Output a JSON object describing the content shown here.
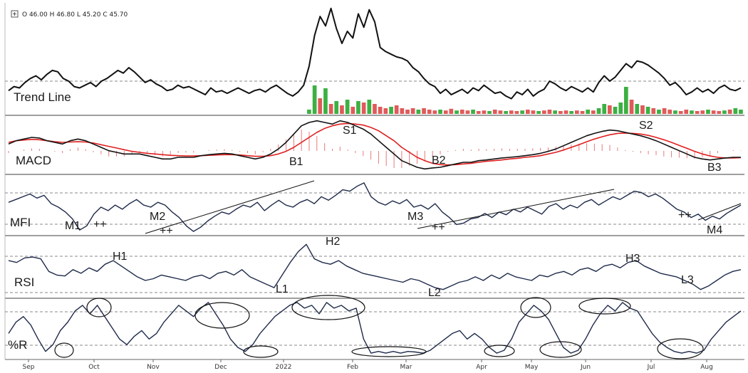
{
  "chart_data": {
    "type": "line",
    "ohlc": {
      "text": "O 46.00  H 46.80  L 45.20  C 45.70"
    },
    "x_ticks": [
      "Sep",
      "Oct",
      "Nov",
      "Dec",
      "2022",
      "Feb",
      "Mar",
      "Apr",
      "May",
      "Jun",
      "Jul",
      "Aug"
    ],
    "panels": [
      {
        "id": "price",
        "label": "Trend Line"
      },
      {
        "id": "macd",
        "label": "MACD"
      },
      {
        "id": "mfi",
        "label": "MFI"
      },
      {
        "id": "rsi",
        "label": "RSI"
      },
      {
        "id": "wr",
        "label": "%R"
      }
    ],
    "colors": {
      "line": "#111111",
      "signal": "#e02020",
      "vol_up": "#3cb043",
      "vol_down": "#e05a5a",
      "hist": "#e87a7a",
      "grid": "#888888"
    },
    "series": {
      "price": [
        45.7,
        46,
        45.9,
        46.3,
        46.6,
        46.8,
        46.5,
        46.9,
        47.2,
        47.1,
        46.6,
        46.4,
        46.0,
        45.9,
        46.1,
        46.3,
        46.0,
        46.4,
        46.6,
        46.9,
        47.2,
        47.0,
        47.4,
        47.1,
        46.7,
        46.3,
        46.5,
        46.2,
        46.0,
        45.7,
        45.8,
        46.1,
        45.9,
        46.0,
        45.8,
        45.6,
        45.4,
        45.9,
        45.6,
        45.7,
        45.5,
        45.7,
        45.9,
        45.7,
        45.5,
        45.7,
        45.8,
        45.6,
        45.9,
        46.1,
        45.8,
        45.5,
        45.3,
        45.6,
        46.1,
        47.5,
        49.8,
        51.2,
        50.5,
        51.8,
        50.3,
        49.2,
        50.1,
        49.6,
        51.4,
        50.4,
        51.7,
        50.8,
        48.9,
        48.6,
        48.4,
        48.2,
        48.1,
        47.9,
        47.4,
        47.1,
        46.6,
        46.2,
        46.0,
        45.5,
        45.8,
        45.4,
        45.6,
        45.8,
        45.5,
        45.9,
        45.7,
        46.1,
        45.8,
        45.5,
        45.6,
        45.3,
        45.1,
        45.6,
        45.4,
        45.8,
        45.3,
        45.6,
        45.8,
        46.4,
        46.2,
        45.9,
        45.7,
        46.0,
        45.8,
        45.6,
        45.9,
        45.6,
        46.3,
        46.8,
        46.4,
        46.7,
        47.2,
        47.7,
        47.4,
        47.9,
        47.8,
        47.6,
        47.3,
        47.0,
        46.6,
        46.1,
        46.3,
        45.9,
        45.4,
        45.6,
        45.9,
        45.6,
        45.8,
        45.5,
        45.9,
        46.1,
        45.8,
        45.7,
        45.9
      ],
      "volume": [
        0,
        0,
        0,
        0,
        0,
        0,
        0,
        0,
        0,
        0,
        0,
        0,
        0,
        0,
        0,
        0,
        0,
        0,
        0,
        0,
        0,
        0,
        0,
        0,
        0,
        0,
        0,
        0,
        0,
        0,
        0,
        0,
        0,
        0,
        0,
        0,
        0,
        0,
        0,
        0,
        0,
        0,
        0,
        0,
        0,
        0,
        0,
        0,
        0,
        0,
        0,
        0,
        0,
        0,
        0,
        0.15,
        1.0,
        0.55,
        0.9,
        0.35,
        0.45,
        0.3,
        0.5,
        0.25,
        0.45,
        0.4,
        0.5,
        0.35,
        0.25,
        0.2,
        0.25,
        0.3,
        0.2,
        0.15,
        0.2,
        0.15,
        0.2,
        0.15,
        0.12,
        0.15,
        0.12,
        0.18,
        0.12,
        0.15,
        0.12,
        0.15,
        0.1,
        0.12,
        0.1,
        0.15,
        0.12,
        0.1,
        0.12,
        0.1,
        0.12,
        0.15,
        0.12,
        0.1,
        0.12,
        0.15,
        0.12,
        0.1,
        0.12,
        0.1,
        0.12,
        0.1,
        0.15,
        0.12,
        0.2,
        0.35,
        0.3,
        0.25,
        0.4,
        0.95,
        0.5,
        0.35,
        0.3,
        0.25,
        0.2,
        0.15,
        0.2,
        0.15,
        0.12,
        0.1,
        0.15,
        0.12,
        0.1,
        0.12,
        0.15,
        0.12,
        0.1,
        0.12,
        0.15,
        0.2,
        0.15
      ],
      "volume_up": [
        false,
        false,
        false,
        false,
        false,
        false,
        false,
        false,
        false,
        false,
        false,
        false,
        false,
        false,
        false,
        false,
        false,
        false,
        false,
        false,
        false,
        false,
        false,
        false,
        false,
        false,
        false,
        false,
        false,
        false,
        false,
        false,
        false,
        false,
        false,
        false,
        false,
        false,
        false,
        false,
        false,
        false,
        false,
        false,
        false,
        false,
        false,
        false,
        false,
        false,
        false,
        false,
        false,
        false,
        false,
        true,
        true,
        false,
        true,
        false,
        true,
        false,
        true,
        false,
        true,
        false,
        true,
        false,
        false,
        false,
        true,
        false,
        false,
        false,
        false,
        true,
        false,
        false,
        false,
        true,
        false,
        false,
        true,
        false,
        false,
        true,
        false,
        false,
        true,
        false,
        false,
        true,
        false,
        false,
        true,
        false,
        false,
        true,
        false,
        false,
        true,
        false,
        false,
        true,
        false,
        false,
        true,
        false,
        true,
        true,
        false,
        true,
        true,
        true,
        false,
        true,
        false,
        true,
        false,
        true,
        false,
        false,
        true,
        false,
        false,
        true,
        false,
        false,
        true,
        false,
        false,
        true,
        false,
        true,
        true
      ],
      "macd": [
        0.4,
        0.5,
        0.55,
        0.6,
        0.58,
        0.5,
        0.45,
        0.4,
        0.5,
        0.55,
        0.5,
        0.4,
        0.3,
        0.2,
        0.15,
        0.1,
        0.1,
        0.1,
        0.05,
        0.0,
        -0.05,
        -0.05,
        0.0,
        0.0,
        0.0,
        0.05,
        0.08,
        0.1,
        0.12,
        0.1,
        0.05,
        0.0,
        -0.05,
        0.0,
        0.1,
        0.25,
        0.45,
        0.7,
        0.95,
        1.05,
        1.1,
        1.05,
        1.0,
        1.1,
        1.05,
        0.95,
        0.85,
        0.7,
        0.5,
        0.3,
        0.1,
        -0.1,
        -0.2,
        -0.3,
        -0.35,
        -0.32,
        -0.3,
        -0.25,
        -0.2,
        -0.15,
        -0.15,
        -0.1,
        -0.08,
        -0.05,
        -0.02,
        0.0,
        0.02,
        0.05,
        0.08,
        0.12,
        0.18,
        0.25,
        0.35,
        0.45,
        0.55,
        0.65,
        0.72,
        0.78,
        0.82,
        0.8,
        0.75,
        0.7,
        0.65,
        0.58,
        0.5,
        0.4,
        0.3,
        0.2,
        0.1,
        0.0,
        -0.05,
        -0.08,
        -0.05,
        -0.02,
        0.0,
        0.0
      ],
      "signal": [
        0.45,
        0.5,
        0.52,
        0.54,
        0.53,
        0.5,
        0.47,
        0.45,
        0.46,
        0.47,
        0.46,
        0.43,
        0.38,
        0.33,
        0.28,
        0.23,
        0.18,
        0.15,
        0.12,
        0.1,
        0.08,
        0.06,
        0.05,
        0.04,
        0.04,
        0.05,
        0.06,
        0.07,
        0.08,
        0.08,
        0.07,
        0.05,
        0.03,
        0.03,
        0.05,
        0.1,
        0.18,
        0.3,
        0.45,
        0.6,
        0.75,
        0.87,
        0.95,
        1.0,
        1.02,
        1.0,
        0.97,
        0.9,
        0.8,
        0.65,
        0.5,
        0.3,
        0.15,
        0.0,
        -0.1,
        -0.18,
        -0.22,
        -0.23,
        -0.22,
        -0.2,
        -0.18,
        -0.15,
        -0.12,
        -0.1,
        -0.08,
        -0.05,
        -0.03,
        0.0,
        0.02,
        0.05,
        0.1,
        0.15,
        0.22,
        0.3,
        0.38,
        0.47,
        0.55,
        0.62,
        0.68,
        0.72,
        0.73,
        0.72,
        0.7,
        0.66,
        0.6,
        0.53,
        0.45,
        0.36,
        0.27,
        0.18,
        0.1,
        0.04,
        0.0,
        -0.02,
        -0.02,
        -0.01
      ],
      "mfi": [
        62,
        66,
        70,
        74,
        68,
        72,
        60,
        55,
        48,
        38,
        22,
        28,
        45,
        55,
        50,
        58,
        52,
        60,
        66,
        58,
        55,
        62,
        58,
        48,
        40,
        28,
        20,
        26,
        35,
        42,
        48,
        45,
        52,
        58,
        55,
        62,
        50,
        58,
        65,
        58,
        55,
        62,
        66,
        60,
        70,
        65,
        72,
        80,
        78,
        85,
        90,
        70,
        62,
        58,
        64,
        60,
        66,
        55,
        58,
        52,
        60,
        48,
        40,
        30,
        32,
        38,
        40,
        46,
        40,
        48,
        44,
        52,
        48,
        55,
        50,
        45,
        56,
        60,
        52,
        58,
        54,
        62,
        66,
        58,
        64,
        70,
        66,
        72,
        78,
        76,
        70,
        74,
        68,
        60,
        52,
        48,
        40,
        45,
        36,
        42,
        38,
        46,
        52,
        58
      ],
      "rsi": [
        62,
        60,
        65,
        66,
        64,
        50,
        46,
        45,
        52,
        48,
        54,
        50,
        58,
        62,
        56,
        50,
        44,
        40,
        42,
        46,
        44,
        42,
        40,
        44,
        46,
        42,
        48,
        50,
        46,
        52,
        44,
        40,
        36,
        32,
        46,
        60,
        72,
        80,
        64,
        60,
        58,
        62,
        56,
        52,
        48,
        46,
        44,
        42,
        40,
        38,
        42,
        40,
        36,
        32,
        30,
        34,
        38,
        40,
        44,
        40,
        46,
        42,
        48,
        44,
        42,
        40,
        46,
        44,
        48,
        50,
        46,
        52,
        54,
        50,
        56,
        58,
        54,
        60,
        62,
        56,
        52,
        48,
        46,
        44,
        40,
        36,
        30,
        34,
        40,
        46,
        50,
        52
      ],
      "wr": [
        -60,
        -40,
        -30,
        -45,
        -70,
        -92,
        -80,
        -55,
        -40,
        -20,
        -10,
        -25,
        -10,
        -30,
        -50,
        -70,
        -80,
        -65,
        -55,
        -70,
        -60,
        -40,
        -25,
        -10,
        -20,
        -30,
        -15,
        -5,
        -25,
        -45,
        -70,
        -85,
        -92,
        -80,
        -60,
        -45,
        -30,
        -20,
        -10,
        -5,
        -15,
        -10,
        -25,
        -5,
        -15,
        -10,
        -20,
        -15,
        -70,
        -95,
        -92,
        -95,
        -92,
        -95,
        -92,
        -93,
        -95,
        -90,
        -80,
        -70,
        -60,
        -55,
        -70,
        -60,
        -70,
        -85,
        -95,
        -90,
        -70,
        -40,
        -25,
        -10,
        -20,
        -35,
        -60,
        -85,
        -95,
        -90,
        -70,
        -45,
        -25,
        -10,
        -20,
        -5,
        -15,
        -20,
        -40,
        -60,
        -75,
        -85,
        -92,
        -95,
        -92,
        -95,
        -90,
        -70,
        -55,
        -40,
        -30,
        -20
      ]
    },
    "annotations": {
      "macd": [
        "B1",
        "S1",
        "B2",
        "S2",
        "B3"
      ],
      "mfi": [
        "M1",
        "++",
        "M2",
        "++",
        "M3",
        "++",
        "++",
        "M4"
      ],
      "rsi": [
        "H1",
        "L1",
        "H2",
        "L2",
        "H3",
        "L3"
      ]
    }
  }
}
